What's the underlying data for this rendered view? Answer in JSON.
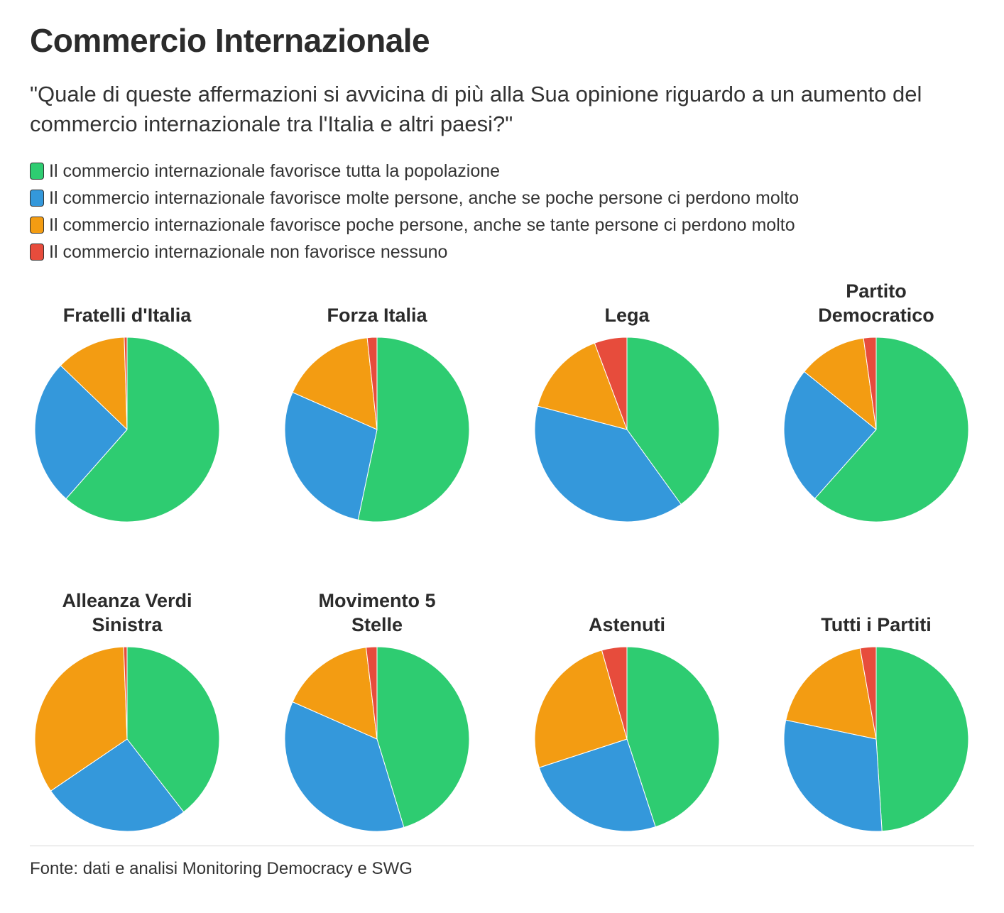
{
  "header": {
    "title": "Commercio Internazionale",
    "subtitle": "\"Quale di queste affermazioni si avvicina di più alla Sua opinione riguardo a un aumento del commercio internazionale tra l'Italia e altri paesi?\""
  },
  "legend": {
    "items": [
      {
        "label": "Il commercio internazionale favorisce tutta la popolazione",
        "color": "#2ecc71"
      },
      {
        "label": "Il commercio internazionale favorisce molte persone, anche se poche persone ci perdono molto",
        "color": "#3498db"
      },
      {
        "label": "Il commercio internazionale favorisce poche persone, anche se tante persone ci perdono molto",
        "color": "#f39c12"
      },
      {
        "label": "Il commercio internazionale non favorisce nessuno",
        "color": "#e74c3c"
      }
    ]
  },
  "chart_data": {
    "type": "pie",
    "legend_position": "top",
    "categories": [
      "Il commercio internazionale favorisce tutta la popolazione",
      "Il commercio internazionale favorisce molte persone, anche se poche persone ci perdono molto",
      "Il commercio internazionale favorisce poche persone, anche se tante persone ci perdono molto",
      "Il commercio internazionale non favorisce nessuno"
    ],
    "colors": [
      "#2ecc71",
      "#3498db",
      "#f39c12",
      "#e74c3c"
    ],
    "series": [
      {
        "name": "Fratelli d'Italia",
        "title_lines": [
          "Fratelli d'Italia"
        ],
        "values": [
          61.5,
          25.7,
          12.3,
          0.5
        ]
      },
      {
        "name": "Forza Italia",
        "title_lines": [
          "Forza Italia"
        ],
        "values": [
          53.3,
          28.3,
          16.7,
          1.7
        ]
      },
      {
        "name": "Lega",
        "title_lines": [
          "Lega"
        ],
        "values": [
          40.0,
          39.0,
          15.2,
          5.7
        ]
      },
      {
        "name": "Partito Democratico",
        "title_lines": [
          "Partito",
          "Democratico"
        ],
        "values": [
          61.5,
          24.2,
          12.0,
          2.2
        ]
      },
      {
        "name": "Alleanza Verdi Sinistra",
        "title_lines": [
          "Alleanza Verdi",
          "Sinistra"
        ],
        "values": [
          39.5,
          26.0,
          33.9,
          0.6
        ]
      },
      {
        "name": "Movimento 5 Stelle",
        "title_lines": [
          "Movimento 5",
          "Stelle"
        ],
        "values": [
          45.3,
          36.3,
          16.5,
          1.9
        ]
      },
      {
        "name": "Astenuti",
        "title_lines": [
          "Astenuti"
        ],
        "values": [
          45.0,
          25.0,
          25.6,
          4.4
        ]
      },
      {
        "name": "Tutti i Partiti",
        "title_lines": [
          "Tutti i Partiti"
        ],
        "values": [
          49.0,
          29.3,
          18.9,
          2.8
        ]
      }
    ]
  },
  "footer": {
    "source": "Fonte: dati e analisi Monitoring Democracy e SWG"
  }
}
